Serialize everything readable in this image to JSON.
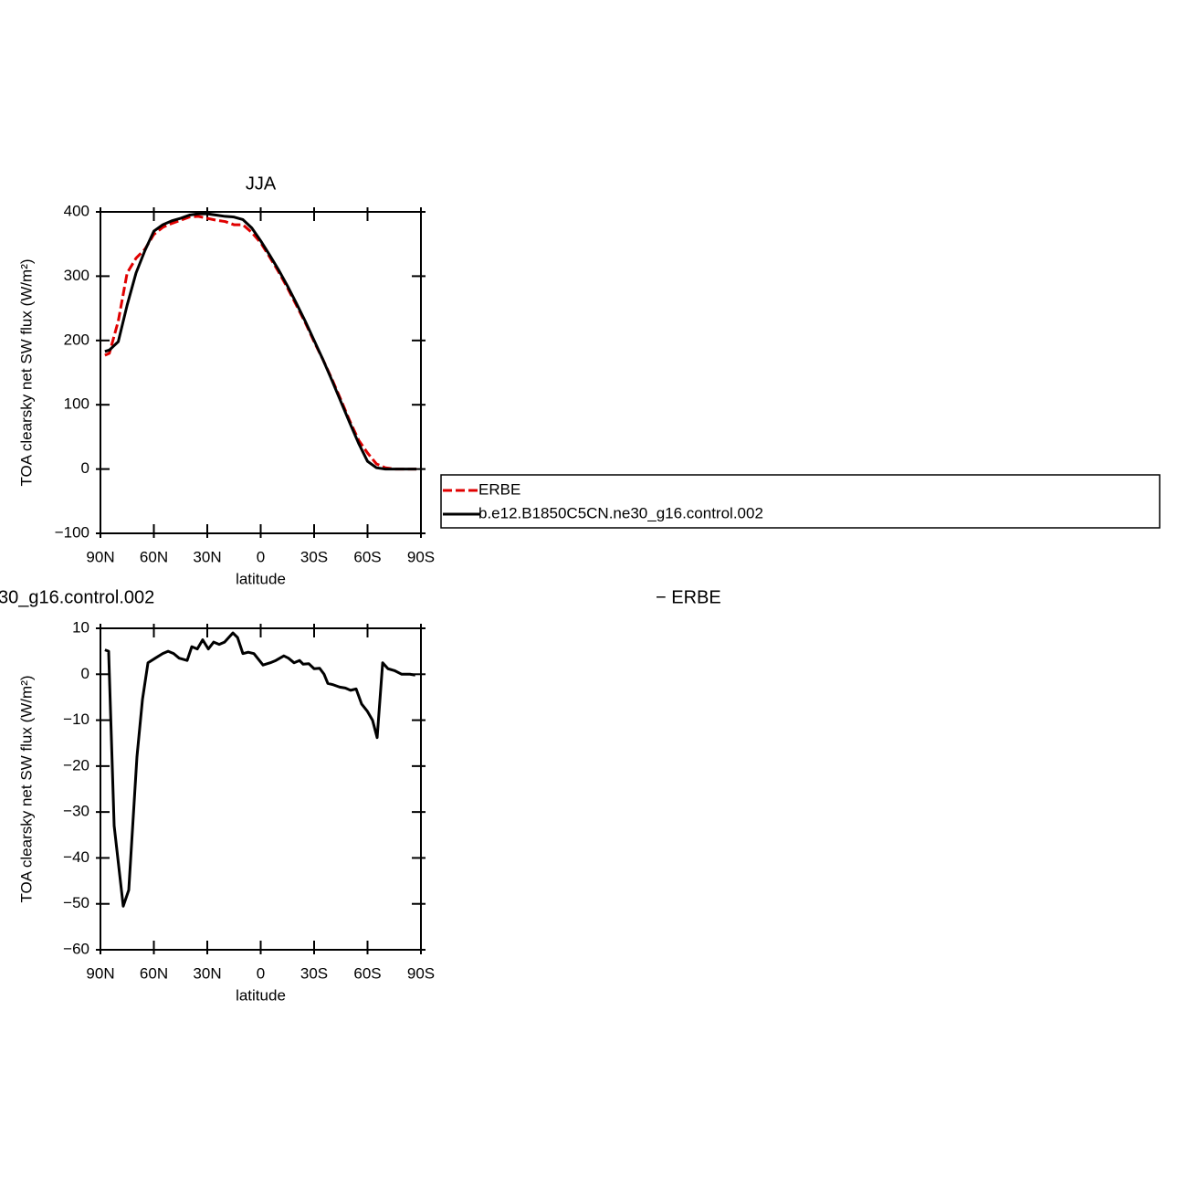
{
  "chart_data": [
    {
      "type": "line",
      "title": "JJA",
      "xlabel": "latitude",
      "ylabel": "TOA clearsky net SW flux (W/m²)",
      "x": [
        87.5,
        85,
        80,
        75,
        70,
        65,
        60,
        55,
        50,
        45,
        40,
        35,
        30,
        25,
        20,
        15,
        10,
        5,
        0,
        -5,
        -10,
        -15,
        -20,
        -25,
        -30,
        -35,
        -40,
        -45,
        -50,
        -55,
        -60,
        -65,
        -70,
        -75,
        -80,
        -85,
        -87.5
      ],
      "series": [
        {
          "name": "ERBE",
          "color": "#e00000",
          "linestyle": "dashed",
          "values": [
            177,
            180,
            230,
            305,
            328,
            342,
            365,
            376,
            382,
            387,
            392,
            393,
            390,
            387,
            385,
            380,
            380,
            368,
            352,
            330,
            307,
            282,
            255,
            228,
            198,
            170,
            140,
            108,
            75,
            45,
            25,
            8,
            2,
            0,
            0,
            0,
            0
          ]
        },
        {
          "name": "b.e12.B1850C5CN.ne30_g16.control.002",
          "color": "#000000",
          "linestyle": "solid",
          "values": [
            183,
            185,
            198,
            255,
            305,
            340,
            370,
            380,
            386,
            390,
            395,
            397,
            397,
            395,
            393,
            392,
            388,
            375,
            355,
            333,
            310,
            285,
            258,
            230,
            200,
            170,
            138,
            105,
            72,
            40,
            12,
            2,
            0,
            0,
            0,
            0,
            0
          ]
        }
      ],
      "xlim": [
        90,
        -90
      ],
      "xticks": [
        {
          "value": 90,
          "label": "90N"
        },
        {
          "value": 60,
          "label": "60N"
        },
        {
          "value": 30,
          "label": "30N"
        },
        0,
        {
          "value": -30,
          "label": "30S"
        },
        {
          "value": -60,
          "label": "60S"
        },
        {
          "value": -90,
          "label": "90S"
        }
      ],
      "ylim": [
        -100,
        400
      ],
      "yticks": [
        {
          "value": -100,
          "label": "−100"
        },
        0,
        100,
        200,
        300,
        400
      ],
      "legend": "right"
    },
    {
      "type": "line",
      "title": "30_g16.control.002",
      "subtitle": "− ERBE",
      "xlabel": "latitude",
      "ylabel": "TOA clearsky net SW flux (W/m²)",
      "x": [
        87.5,
        85.4,
        82.3,
        77.2,
        74.1,
        69.5,
        66.4,
        63.3,
        59.2,
        55,
        52,
        48.9,
        45.8,
        41.3,
        38.7,
        35.6,
        32.6,
        29.4,
        26.4,
        23.3,
        20.3,
        15.6,
        13,
        10,
        7,
        3.8,
        -1.3,
        -5.4,
        -8.5,
        -13,
        -15.6,
        -18.7,
        -21.8,
        -23.8,
        -27,
        -30,
        -33.1,
        -35.6,
        -37.7,
        -40.8,
        -44.4,
        -47.5,
        -50.5,
        -53.6,
        -56.7,
        -59.8,
        -62.8,
        -65.4,
        -68.5,
        -71.5,
        -75.1,
        -79.2,
        -83.8,
        -86.8
      ],
      "color": "#000000",
      "values": [
        5.3,
        5,
        -33,
        -50.5,
        -47,
        -18,
        -5.5,
        2.5,
        3.5,
        4.5,
        5,
        4.5,
        3.5,
        3,
        6,
        5.5,
        7.5,
        5.5,
        7,
        6.5,
        7,
        9,
        8,
        4.5,
        4.8,
        4.5,
        2,
        2.5,
        3,
        4,
        3.5,
        2.5,
        3,
        2.2,
        2.3,
        1.2,
        1.3,
        0,
        -2,
        -2.3,
        -2.8,
        -3,
        -3.5,
        -3.2,
        -6.5,
        -8,
        -10,
        -13.8,
        2.5,
        1.2,
        0.8,
        0,
        0,
        -0.2
      ],
      "xlim": [
        90,
        -90
      ],
      "xticks": [
        {
          "value": 90,
          "label": "90N"
        },
        {
          "value": 60,
          "label": "60N"
        },
        {
          "value": 30,
          "label": "30N"
        },
        0,
        {
          "value": -30,
          "label": "30S"
        },
        {
          "value": -60,
          "label": "60S"
        },
        {
          "value": -90,
          "label": "90S"
        }
      ],
      "ylim": [
        -60,
        10
      ],
      "yticks": [
        {
          "value": -60,
          "label": "−60"
        },
        {
          "value": -50,
          "label": "−50"
        },
        {
          "value": -40,
          "label": "−40"
        },
        {
          "value": -30,
          "label": "−30"
        },
        {
          "value": -20,
          "label": "−20"
        },
        {
          "value": -10,
          "label": "−10"
        },
        0,
        10
      ]
    }
  ]
}
